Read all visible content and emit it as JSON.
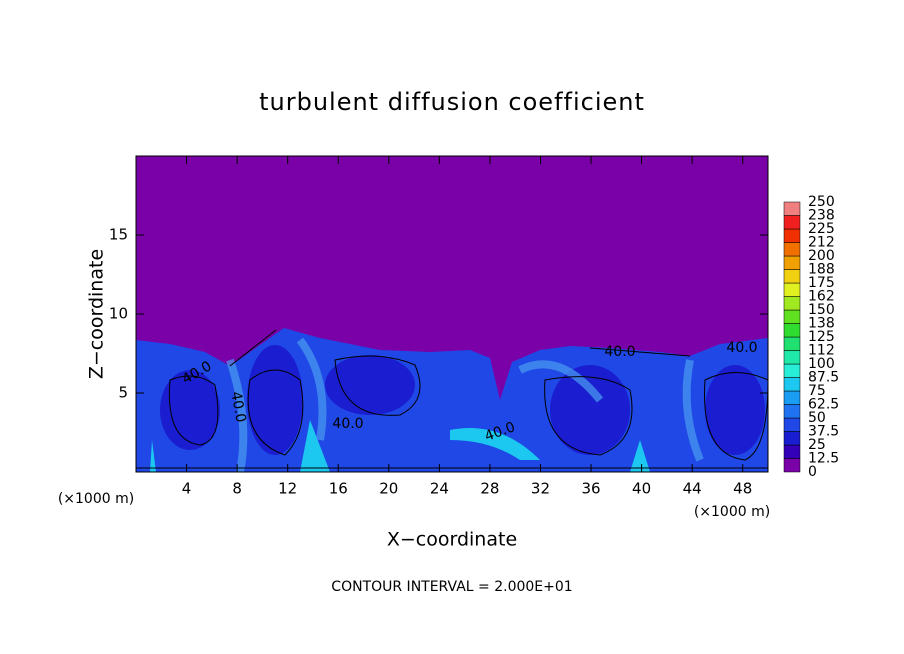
{
  "chart_data": {
    "type": "contour",
    "title": "turbulent diffusion coefficient",
    "xlabel": "X−coordinate",
    "ylabel": "Z−coordinate",
    "x_unit_left": "(×1000 m)",
    "x_unit_right": "(×1000 m)",
    "footnote": "CONTOUR INTERVAL = 2.000E+01",
    "xlim": [
      0,
      50
    ],
    "xticks": [
      4,
      8,
      12,
      16,
      20,
      24,
      28,
      32,
      36,
      40,
      44,
      48
    ],
    "ylim": [
      0,
      20
    ],
    "yticks": [
      5,
      10,
      15
    ],
    "contour_labels": [
      "40.0",
      "40.0",
      "40.0",
      "40.0",
      "40.0",
      "40.0"
    ],
    "colorbar": {
      "levels": [
        0,
        12.5,
        25,
        37.5,
        50,
        62.5,
        75,
        87.5,
        100,
        {
          "value": 112.5,
          "label": "112"
        },
        125,
        {
          "value": 137.5,
          "label": "138"
        },
        150,
        {
          "value": 162.5,
          "label": "162"
        },
        175,
        {
          "value": 187.5,
          "label": "188"
        },
        200,
        {
          "value": 212.5,
          "label": "212"
        },
        225,
        {
          "value": 237.5,
          "label": "238"
        },
        250
      ],
      "colors": [
        "#7a00a8",
        "#3300b8",
        "#1a1ed0",
        "#1f48e6",
        "#1f72f0",
        "#1a9cf2",
        "#1cc8f0",
        "#28eed8",
        "#20e8a8",
        "#20e070",
        "#30dc30",
        "#60e020",
        "#a0e820",
        "#e0f020",
        "#f0d010",
        "#f0a000",
        "#f07000",
        "#f03000",
        "#f02020",
        "#f08080"
      ]
    }
  }
}
